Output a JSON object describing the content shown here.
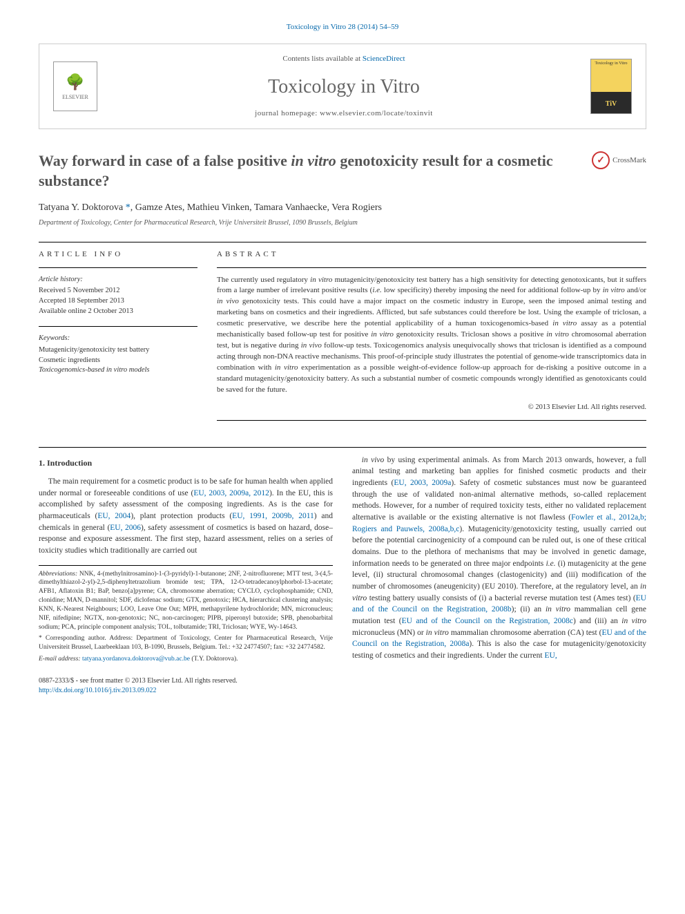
{
  "journal_ref": "Toxicology in Vitro 28 (2014) 54–59",
  "header": {
    "contents_prefix": "Contents lists available at ",
    "contents_link": "ScienceDirect",
    "journal_title": "Toxicology in Vitro",
    "homepage_prefix": "journal homepage: ",
    "homepage_url": "www.elsevier.com/locate/toxinvit",
    "publisher": "ELSEVIER",
    "cover_top": "Toxicology in Vitro",
    "cover_badge": "TiV"
  },
  "crossmark_label": "CrossMark",
  "title_html": "Way forward in case of a false positive <em>in vitro</em> genotoxicity result for a cosmetic substance?",
  "authors_html": "Tatyana Y. Doktorova <a href='#'>*</a>, Gamze Ates, Mathieu Vinken, Tamara Vanhaecke, Vera Rogiers",
  "affiliation": "Department of Toxicology, Center for Pharmaceutical Research, Vrije Universiteit Brussel, 1090 Brussels, Belgium",
  "article_info": {
    "section_label": "ARTICLE INFO",
    "history_head": "Article history:",
    "history_lines": [
      "Received 5 November 2012",
      "Accepted 18 September 2013",
      "Available online 2 October 2013"
    ],
    "keywords_head": "Keywords:",
    "keywords": [
      "Mutagenicity/genotoxicity test battery",
      "Cosmetic ingredients",
      "Toxicogenomics-based in vitro models"
    ]
  },
  "abstract": {
    "section_label": "ABSTRACT",
    "text_html": "The currently used regulatory <em>in vitro</em> mutagenicity/genotoxicity test battery has a high sensitivity for detecting genotoxicants, but it suffers from a large number of irrelevant positive results (<em>i.e.</em> low specificity) thereby imposing the need for additional follow-up by <em>in vitro</em> and/or <em>in vivo</em> genotoxicity tests. This could have a major impact on the cosmetic industry in Europe, seen the imposed animal testing and marketing bans on cosmetics and their ingredients. Afflicted, but safe substances could therefore be lost. Using the example of triclosan, a cosmetic preservative, we describe here the potential applicability of a human toxicogenomics-based <em>in vitro</em> assay as a potential mechanistically based follow-up test for positive <em>in vitro</em> genotoxicity results. Triclosan shows a positive <em>in vitro</em> chromosomal aberration test, but is negative during <em>in vivo</em> follow-up tests. Toxicogenomics analysis unequivocally shows that triclosan is identified as a compound acting through non-DNA reactive mechanisms. This proof-of-principle study illustrates the potential of genome-wide transcriptomics data in combination with <em>in vitro</em> experimentation as a possible weight-of-evidence follow-up approach for de-risking a positive outcome in a standard mutagenicity/genotoxicity battery. As such a substantial number of cosmetic compounds wrongly identified as genotoxicants could be saved for the future.",
    "copyright": "© 2013 Elsevier Ltd. All rights reserved."
  },
  "body": {
    "section_heading": "1. Introduction",
    "para1_html": "The main requirement for a cosmetic product is to be safe for human health when applied under normal or foreseeable conditions of use (<a href='#'>EU, 2003, 2009a, 2012</a>). In the EU, this is accomplished by safety assessment of the composing ingredients. As is the case for pharmaceuticals (<a href='#'>EU, 2004</a>), plant protection products (<a href='#'>EU, 1991, 2009b, 2011</a>) and chemicals in general (<a href='#'>EU, 2006</a>), safety assessment of cosmetics is based on hazard, dose–response and exposure assessment. The first step, hazard assessment, relies on a series of toxicity studies which traditionally are carried out",
    "para2_html": "<em>in vivo</em> by using experimental animals. As from March 2013 onwards, however, a full animal testing and marketing ban applies for finished cosmetic products and their ingredients (<a href='#'>EU, 2003, 2009a</a>). Safety of cosmetic substances must now be guaranteed through the use of validated non-animal alternative methods, so-called replacement methods. However, for a number of required toxicity tests, either no validated replacement alternative is available or the existing alternative is not flawless (<a href='#'>Fowler et al., 2012a,b; Rogiers and Pauwels, 2008a,b,c</a>). Mutagenicity/genotoxicity testing, usually carried out before the potential carcinogenicity of a compound can be ruled out, is one of these critical domains. Due to the plethora of mechanisms that may be involved in genetic damage, information needs to be generated on three major endpoints <em>i.e.</em> (i) mutagenicity at the gene level, (ii) structural chromosomal changes (clastogenicity) and (iii) modification of the number of chromosomes (aneugenicity) (EU 2010). Therefore, at the regulatory level, an <em>in vitro</em> testing battery usually consists of (i) a bacterial reverse mutation test (Ames test) (<a href='#'>EU and of the Council on the Registration, 2008b</a>); (ii) an <em>in vitro</em> mammalian cell gene mutation test (<a href='#'>EU and of the Council on the Registration, 2008c</a>) and (iii) an <em>in vitro</em> micronucleus (MN) or <em>in vitro</em> mammalian chromosome aberration (CA) test (<a href='#'>EU and of the Council on the Registration, 2008a</a>). This is also the case for mutagenicity/genotoxicity testing of cosmetics and their ingredients. Under the current <a href='#'>EU,</a>"
  },
  "footnotes": {
    "abbrev_html": "<em>Abbreviations:</em> NNK, 4-(methylnitrosamino)-1-(3-pyridyl)-1-butanone; 2NF, 2-nitrofluorene; MTT test, 3-(4,5-dimethylthiazol-2-yl)-2,5-diphenyltetrazolium bromide test; TPA, 12-O-tetradecanoylphorbol-13-acetate; AFB1, Aflatoxin B1; BaP, benzo[a]pyrene; CA, chromosome aberration; CYCLO, cyclophosphamide; CND, clonidine; MAN, D-mannitol; SDF, diclofenac sodium; GTX, genotoxic; HCA, hierarchical clustering analysis; KNN, K-Nearest Neighbours; LOO, Leave One Out; MPH, methapyrilene hydrochloride; MN, micronucleus; NIF, nifedipine; NGTX, non-genotoxic; NC, non-carcinogen; PIPB, piperonyl butoxide; SPB, phenobarbital sodium; PCA, principle component analysis; TOL, tolbutamide; TRI, Triclosan; WYE, Wy-14643.",
    "corr_html": "* Corresponding author. Address: Department of Toxicology, Center for Pharmaceutical Research, Vrije Universiteit Brussel, Laarbeeklaan 103, B-1090, Brussels, Belgium. Tel.: +32 24774507; fax: +32 24774582.",
    "email_label": "E-mail address:",
    "email": "tatyana.yordanova.doktorova@vub.ac.be",
    "email_suffix": "(T.Y. Doktorova)."
  },
  "footer": {
    "issn_line": "0887-2333/$ - see front matter © 2013 Elsevier Ltd. All rights reserved.",
    "doi": "http://dx.doi.org/10.1016/j.tiv.2013.09.022"
  },
  "colors": {
    "link": "#0066aa",
    "text": "#333333",
    "muted": "#666666",
    "rule": "#000000",
    "cover_yellow": "#f4d35e"
  }
}
